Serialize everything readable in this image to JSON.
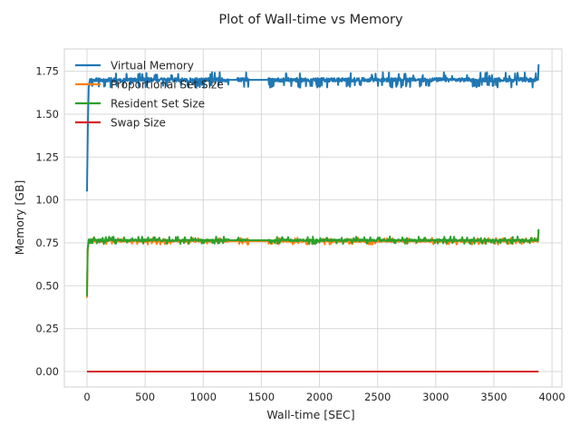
{
  "chart_data": {
    "type": "line",
    "title": "Plot of Wall-time vs Memory",
    "xlabel": "Wall-time [SEC]",
    "ylabel": "Memory [GB]",
    "xlim": [
      -195,
      4085
    ],
    "ylim": [
      -0.09,
      1.88
    ],
    "xticks": [
      0,
      500,
      1000,
      1500,
      2000,
      2500,
      3000,
      3500,
      4000
    ],
    "xtick_labels": [
      "0",
      "500",
      "1000",
      "1500",
      "2000",
      "2500",
      "3000",
      "3500",
      "4000"
    ],
    "yticks": [
      0.0,
      0.25,
      0.5,
      0.75,
      1.0,
      1.25,
      1.5,
      1.75
    ],
    "ytick_labels": [
      "0.00",
      "0.25",
      "0.50",
      "0.75",
      "1.00",
      "1.25",
      "1.50",
      "1.75"
    ],
    "grid": true,
    "legend_position": "top-left",
    "gaps": [
      [
        1220,
        1290
      ],
      [
        1390,
        1560
      ]
    ],
    "series": [
      {
        "name": "Virtual Memory",
        "color": "#1f77b4",
        "x": [
          0,
          3,
          8,
          15,
          25,
          3880,
          3885
        ],
        "values": [
          1.05,
          1.22,
          1.45,
          1.66,
          1.7,
          1.7,
          1.79
        ],
        "base": 1.7,
        "noise_amp": 0.045
      },
      {
        "name": "Proportional Set Size",
        "color": "#ff7f0e",
        "x": [
          0,
          5,
          15,
          3880,
          3885
        ],
        "values": [
          0.43,
          0.7,
          0.76,
          0.76,
          0.82
        ],
        "base": 0.76,
        "noise_amp": 0.02
      },
      {
        "name": "Resident Set Size",
        "color": "#2ca02c",
        "x": [
          0,
          5,
          15,
          3880,
          3885
        ],
        "values": [
          0.44,
          0.71,
          0.77,
          0.77,
          0.83
        ],
        "base": 0.765,
        "noise_amp": 0.022
      },
      {
        "name": "Swap Size",
        "color": "#d62728",
        "x": [
          0,
          3885
        ],
        "values": [
          0.0,
          0.0
        ],
        "base": 0.0,
        "noise_amp": 0.0
      }
    ]
  }
}
